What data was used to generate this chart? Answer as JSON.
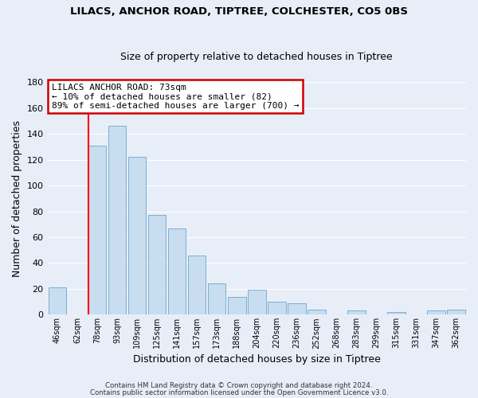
{
  "title": "LILACS, ANCHOR ROAD, TIPTREE, COLCHESTER, CO5 0BS",
  "subtitle": "Size of property relative to detached houses in Tiptree",
  "xlabel": "Distribution of detached houses by size in Tiptree",
  "ylabel": "Number of detached properties",
  "bin_labels": [
    "46sqm",
    "62sqm",
    "78sqm",
    "93sqm",
    "109sqm",
    "125sqm",
    "141sqm",
    "157sqm",
    "173sqm",
    "188sqm",
    "204sqm",
    "220sqm",
    "236sqm",
    "252sqm",
    "268sqm",
    "283sqm",
    "299sqm",
    "315sqm",
    "331sqm",
    "347sqm",
    "362sqm"
  ],
  "bar_values": [
    21,
    0,
    131,
    146,
    122,
    77,
    67,
    46,
    24,
    14,
    19,
    10,
    9,
    4,
    0,
    3,
    0,
    2,
    0,
    3,
    4
  ],
  "bar_color": "#c8ddf0",
  "bar_edge_color": "#7aafd4",
  "reference_line_label": "LILACS ANCHOR ROAD: 73sqm",
  "annotation_line1": "← 10% of detached houses are smaller (82)",
  "annotation_line2": "89% of semi-detached houses are larger (700) →",
  "annotation_box_color": "#ffffff",
  "annotation_box_edge": "#cc0000",
  "ylim": [
    0,
    180
  ],
  "yticks": [
    0,
    20,
    40,
    60,
    80,
    100,
    120,
    140,
    160,
    180
  ],
  "footer1": "Contains HM Land Registry data © Crown copyright and database right 2024.",
  "footer2": "Contains public sector information licensed under the Open Government Licence v3.0.",
  "bg_color": "#e8eef8",
  "grid_color": "#ffffff",
  "title_fontsize": 9.5,
  "subtitle_fontsize": 9
}
